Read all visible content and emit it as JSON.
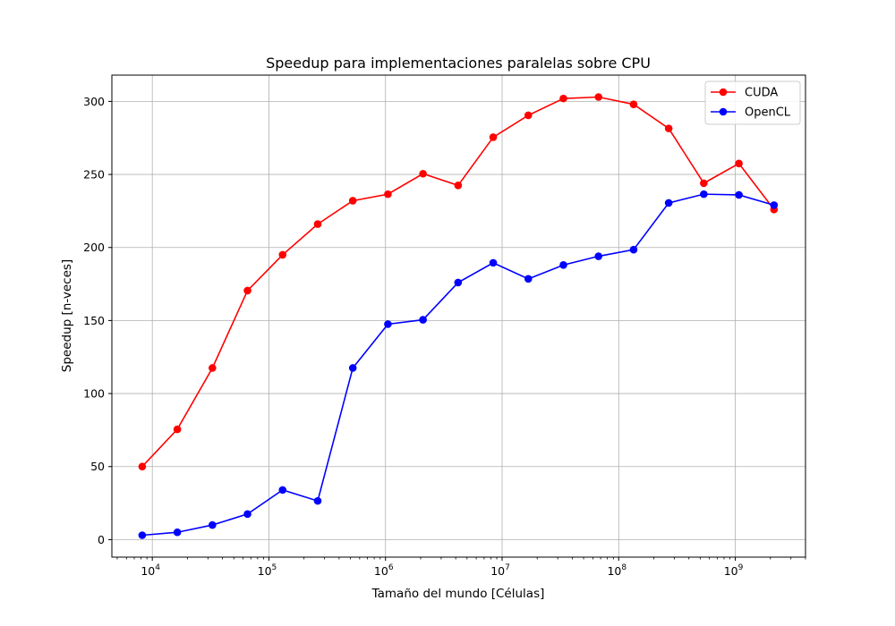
{
  "chart_data": {
    "type": "line",
    "title": "Speedup para implementaciones paralelas sobre CPU",
    "xlabel": "Tamaño del mundo [Células]",
    "ylabel": "Speedup [n-veces]",
    "x_scale": "log",
    "xlim": [
      4500,
      4000000000
    ],
    "ylim": [
      -12,
      318
    ],
    "grid": true,
    "legend_position": "top-right",
    "x_ticks": [
      {
        "exp": 4,
        "value": 10000
      },
      {
        "exp": 5,
        "value": 100000
      },
      {
        "exp": 6,
        "value": 1000000
      },
      {
        "exp": 7,
        "value": 10000000
      },
      {
        "exp": 8,
        "value": 100000000
      },
      {
        "exp": 9,
        "value": 1000000000
      }
    ],
    "y_ticks": [
      0,
      50,
      100,
      150,
      200,
      250,
      300
    ],
    "x": [
      8192,
      16384,
      32768,
      65536,
      131072,
      262144,
      524288,
      1048576,
      2097152,
      4194304,
      8388608,
      16777216,
      33554432,
      67108864,
      134217728,
      268435456,
      536870912,
      1073741824,
      2147483648
    ],
    "series": [
      {
        "name": "CUDA",
        "color": "#ff0000",
        "values": [
          50,
          75.5,
          117.5,
          170.5,
          195,
          216,
          232,
          236.5,
          250.5,
          242.5,
          275.5,
          290.5,
          302,
          303,
          298,
          281.5,
          244,
          257.5,
          226
        ]
      },
      {
        "name": "OpenCL",
        "color": "#0000ff",
        "values": [
          3,
          5,
          10,
          17.5,
          34,
          26.5,
          117.5,
          147.5,
          150.5,
          176,
          189.5,
          178.5,
          188,
          194,
          198.5,
          230.5,
          236.5,
          236,
          229
        ]
      }
    ]
  }
}
